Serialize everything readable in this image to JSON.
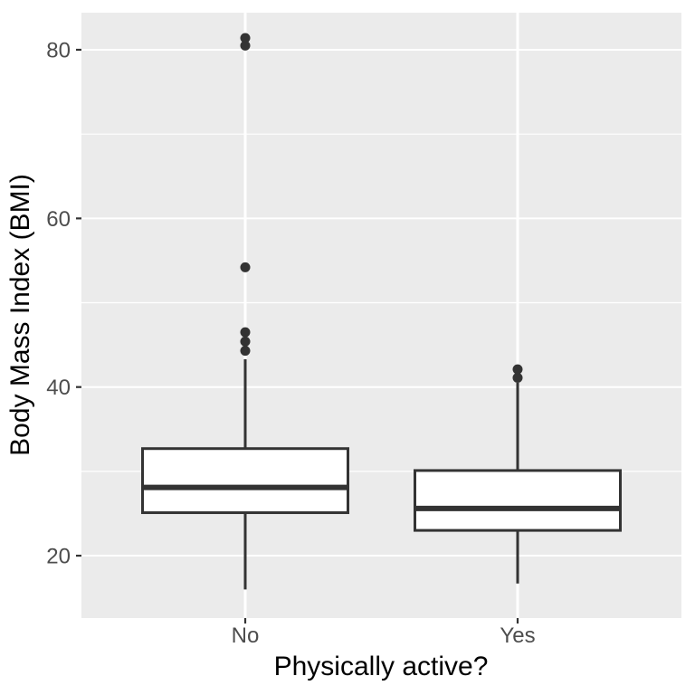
{
  "figure": {
    "background_color": "#FFFFFF",
    "title": ""
  },
  "chart_data": {
    "type": "boxplot",
    "title": "",
    "xlabel": "Physically active?",
    "ylabel": "Body Mass Index (BMI)",
    "categories": [
      "No",
      "Yes"
    ],
    "series": [
      {
        "name": "No",
        "whisker_low": 16.0,
        "q1": 25.1,
        "median": 28.1,
        "q3": 32.7,
        "whisker_high": 43.3,
        "outliers": [
          44.3,
          45.4,
          46.5,
          54.2,
          80.5,
          81.4
        ]
      },
      {
        "name": "Yes",
        "whisker_low": 16.7,
        "q1": 23.0,
        "median": 25.6,
        "q3": 30.1,
        "whisker_high": 40.5,
        "outliers": [
          41.1,
          42.1
        ]
      }
    ],
    "yticks": [
      20,
      40,
      60,
      80
    ],
    "yticks_minor": [
      30,
      50,
      70
    ],
    "ylim": [
      12.6,
      84.4
    ],
    "grid": {
      "horizontal_major": true,
      "horizontal_minor": true,
      "vertical_at_categories": true
    },
    "legend": "none",
    "style": {
      "panel_background": "#EBEBEB",
      "grid_color": "#FFFFFF",
      "box_stroke": "#333333",
      "box_fill": "#FFFFFF",
      "outlier_color": "#333333",
      "axis_tick_color": "#333333",
      "tick_label_color": "#4D4D4D",
      "axis_title_color": "#000000"
    }
  }
}
